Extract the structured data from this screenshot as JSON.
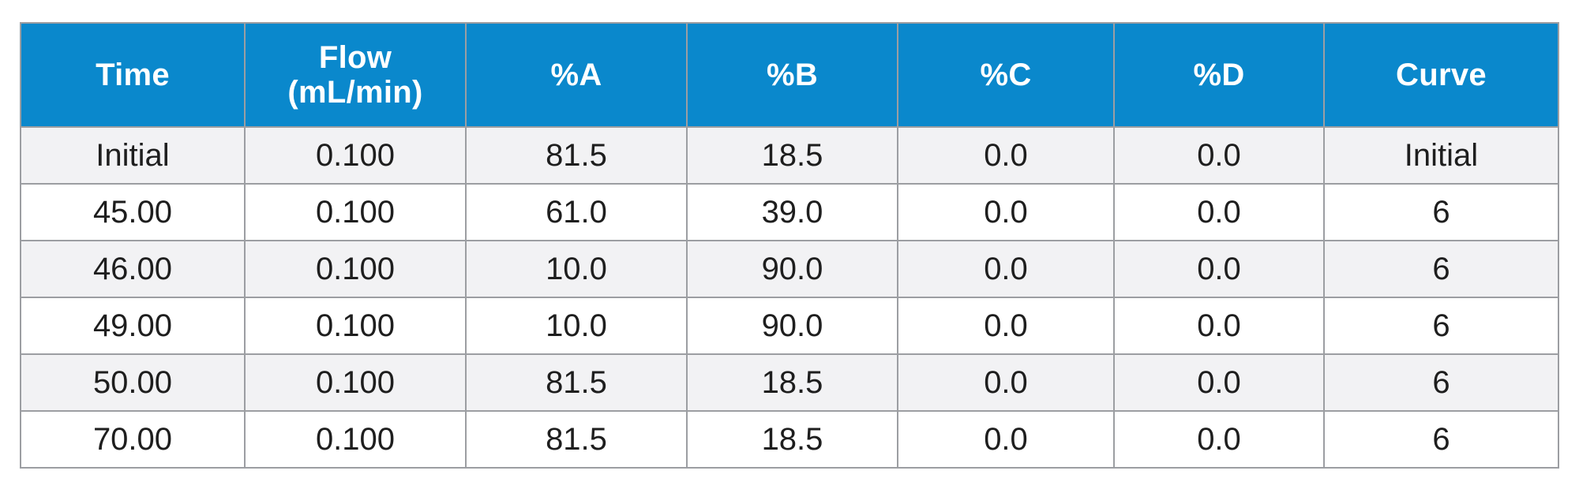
{
  "table": {
    "headers": [
      "Time",
      "Flow\n(mL/min)",
      "%A",
      "%B",
      "%C",
      "%D",
      "Curve"
    ],
    "header_lines": {
      "time": "Time",
      "flow_line1": "Flow",
      "flow_line2": "(mL/min)",
      "a": "%A",
      "b": "%B",
      "c": "%C",
      "d": "%D",
      "curve": "Curve"
    },
    "rows": [
      [
        "Initial",
        "0.100",
        "81.5",
        "18.5",
        "0.0",
        "0.0",
        "Initial"
      ],
      [
        "45.00",
        "0.100",
        "61.0",
        "39.0",
        "0.0",
        "0.0",
        "6"
      ],
      [
        "46.00",
        "0.100",
        "10.0",
        "90.0",
        "0.0",
        "0.0",
        "6"
      ],
      [
        "49.00",
        "0.100",
        "10.0",
        "90.0",
        "0.0",
        "0.0",
        "6"
      ],
      [
        "50.00",
        "0.100",
        "81.5",
        "18.5",
        "0.0",
        "0.0",
        "6"
      ],
      [
        "70.00",
        "0.100",
        "81.5",
        "18.5",
        "0.0",
        "0.0",
        "6"
      ]
    ]
  },
  "colors": {
    "header_background": "#0a88cc",
    "header_text": "#ffffff",
    "alternate_row_background": "#f2f2f4",
    "row_background": "#ffffff",
    "grid_lines": "#9c9ea2"
  }
}
